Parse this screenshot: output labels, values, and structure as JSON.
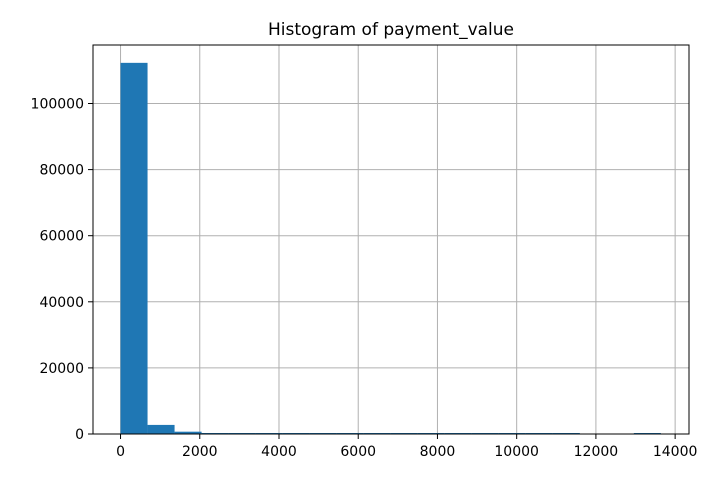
{
  "chart_data": {
    "type": "bar",
    "title": "Histogram of payment_value",
    "xlabel": "",
    "ylabel": "",
    "xlim": [
      -695,
      14350
    ],
    "ylim": [
      0,
      117700
    ],
    "bin_edges": [
      0,
      682,
      1364,
      2046,
      2728,
      3410,
      4092,
      4774,
      5456,
      6138,
      6820,
      7502,
      8184,
      8866,
      9548,
      10230,
      10912,
      11594,
      12276,
      12958,
      13640
    ],
    "values": [
      112300,
      2750,
      700,
      250,
      130,
      60,
      25,
      8,
      5,
      3,
      2,
      2,
      1,
      1,
      1,
      1,
      1,
      0,
      0,
      1
    ],
    "x_ticks": [
      0,
      2000,
      4000,
      6000,
      8000,
      10000,
      12000,
      14000
    ],
    "x_tick_labels": [
      "0",
      "2000",
      "4000",
      "6000",
      "8000",
      "10000",
      "12000",
      "14000"
    ],
    "y_ticks": [
      0,
      20000,
      40000,
      60000,
      80000,
      100000
    ],
    "y_tick_labels": [
      "0",
      "20000",
      "40000",
      "60000",
      "80000",
      "100000"
    ],
    "grid": true,
    "bar_color": "#1f77b4",
    "grid_color": "#b0b0b0"
  }
}
